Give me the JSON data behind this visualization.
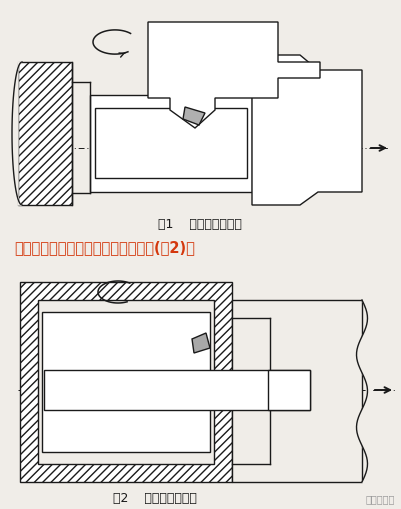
{
  "bg_color": "#f0ede8",
  "black": "#1a1a1a",
  "gray": "#aaaaaa",
  "red_text": "#d4380d",
  "caption1": "图1    反向切削外螺纹",
  "caption2": "图2    反向切削内螺纹",
  "middle_text": "车内螺纹时，磨一把反向内螺纹车刀(图2)。",
  "watermark": "美易机械题"
}
